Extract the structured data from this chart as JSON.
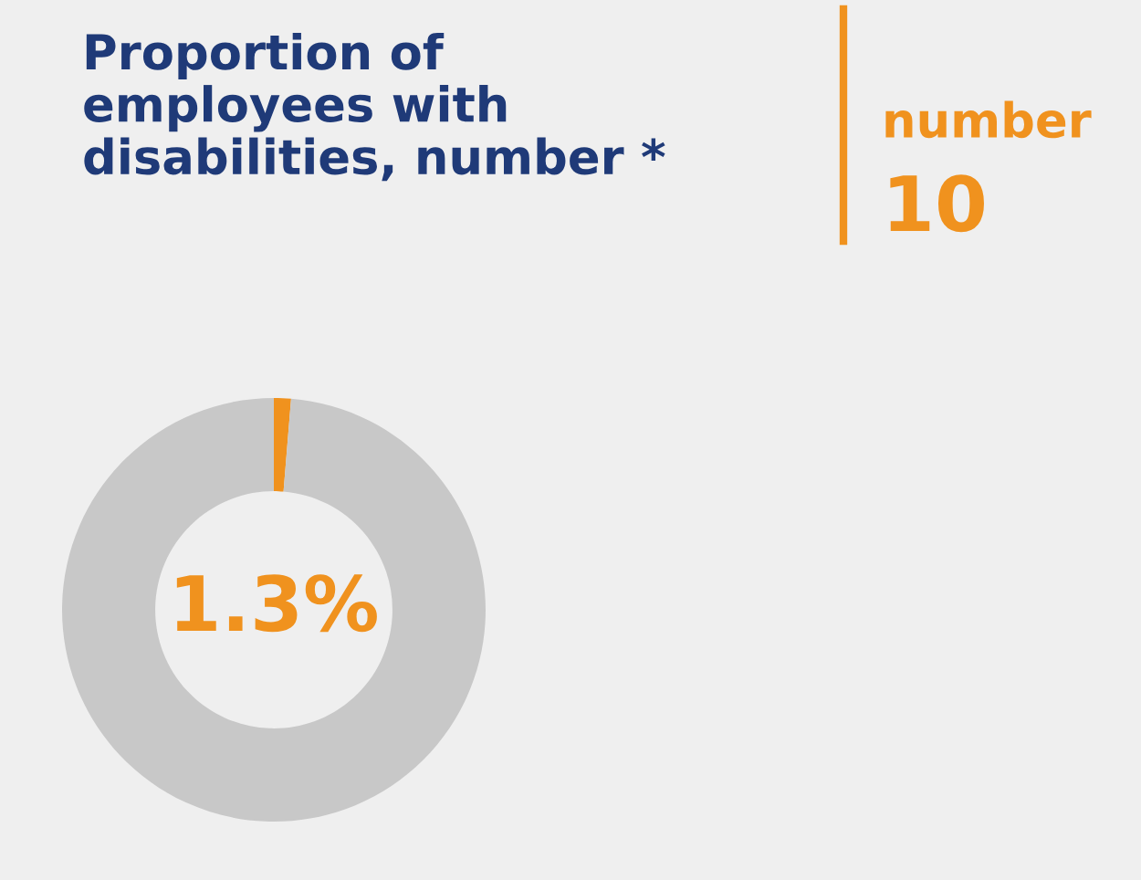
{
  "chart_data": {
    "type": "donut",
    "title": "Proportion of\nemployees with\ndisabilities, number *",
    "categories": [
      null,
      null
    ],
    "values": [
      1.3,
      98.7
    ],
    "colors": [
      "#f0921e",
      "#c8c8c8"
    ],
    "annotations": [
      "1.3%",
      "number",
      "10"
    ]
  }
}
